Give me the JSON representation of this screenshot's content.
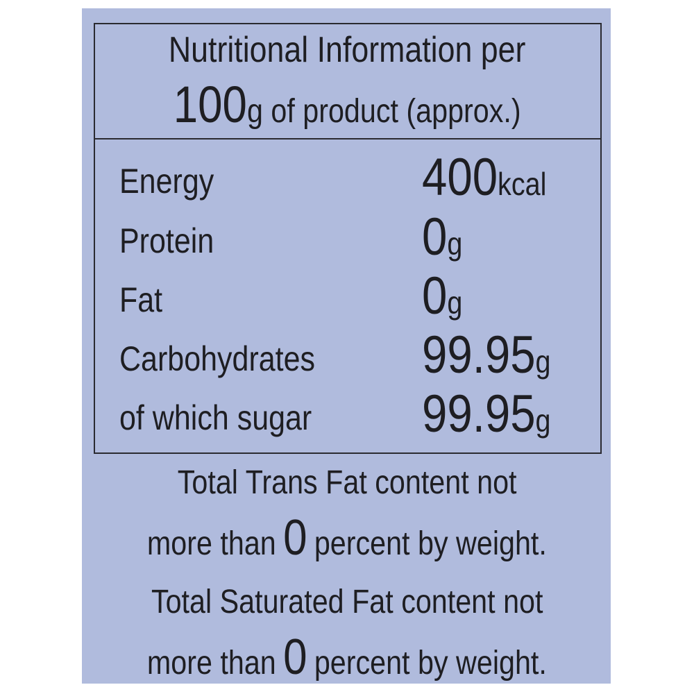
{
  "header": {
    "line1": "Nutritional Information per",
    "amount": "100",
    "line2_rest": "g of product (approx.)"
  },
  "rows": [
    {
      "label": "Energy",
      "value": "400",
      "unit": "kcal"
    },
    {
      "label": "Protein",
      "value": "0",
      "unit": "g"
    },
    {
      "label": "Fat",
      "value": "0",
      "unit": "g"
    },
    {
      "label": "Carbohydrates",
      "value": "99.95",
      "unit": "g"
    },
    {
      "label": "of which sugar",
      "value": "99.95",
      "unit": "g"
    }
  ],
  "notes": [
    {
      "line1": "Total Trans Fat content not",
      "prefix": "more than",
      "value": "0",
      "suffix": "percent by weight."
    },
    {
      "line1": "Total Saturated Fat content not",
      "prefix": "more than",
      "value": "0",
      "suffix": "percent by weight."
    }
  ]
}
